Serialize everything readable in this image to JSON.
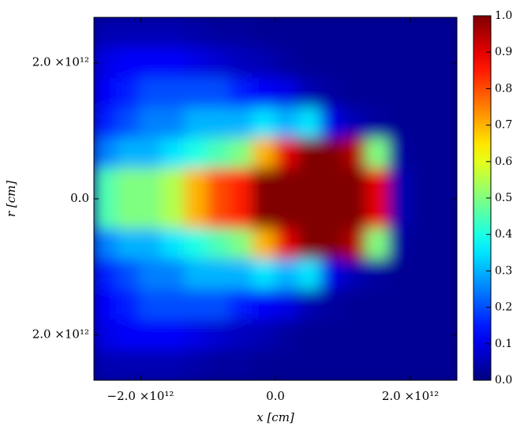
{
  "chart_data": {
    "type": "heatmap",
    "colormap": "jet",
    "x_label": "x [cm]",
    "y_label": "r [cm]",
    "xlim": [
      -2690000000000.0,
      2690000000000.0
    ],
    "ylim": [
      -2670000000000.0,
      2670000000000.0
    ],
    "xticks": [
      {
        "value": -2000000000000.0,
        "label": "−2.0 ×10¹²"
      },
      {
        "value": 0,
        "label": "0.0"
      },
      {
        "value": 2000000000000.0,
        "label": "2.0 ×10¹²"
      }
    ],
    "yticks": [
      {
        "value": 2000000000000.0,
        "label": "2.0 ×10¹²"
      },
      {
        "value": 0,
        "label": "0.0"
      },
      {
        "value": -2000000000000.0,
        "label": "2.0 ×10¹²"
      }
    ],
    "clim": [
      0,
      1
    ],
    "cticks": [
      {
        "value": 0,
        "label": "0.0"
      },
      0.1,
      0.2,
      0.3,
      0.4,
      0.5,
      0.6,
      0.7,
      0.8,
      0.9,
      {
        "value": 1,
        "label": "1.0"
      }
    ],
    "z": [
      [
        0.05,
        0.05,
        0.05,
        0.05,
        0.04,
        0.03,
        0.03,
        0.02,
        0.02,
        0.02,
        0.02,
        0.02,
        0.02,
        0.02,
        0.02,
        0.02
      ],
      [
        0.1,
        0.12,
        0.12,
        0.12,
        0.1,
        0.08,
        0.06,
        0.05,
        0.03,
        0.02,
        0.02,
        0.02,
        0.02,
        0.02,
        0.02,
        0.02
      ],
      [
        0.12,
        0.15,
        0.2,
        0.2,
        0.2,
        0.2,
        0.15,
        0.12,
        0.1,
        0.05,
        0.03,
        0.02,
        0.02,
        0.02,
        0.02,
        0.02
      ],
      [
        0.15,
        0.2,
        0.25,
        0.25,
        0.3,
        0.3,
        0.3,
        0.35,
        0.3,
        0.35,
        0.1,
        0.05,
        0.03,
        0.02,
        0.02,
        0.02
      ],
      [
        0.25,
        0.3,
        0.3,
        0.35,
        0.4,
        0.45,
        0.5,
        0.7,
        0.9,
        1.0,
        1.0,
        0.95,
        0.5,
        0.03,
        0.02,
        0.02
      ],
      [
        0.45,
        0.5,
        0.5,
        0.55,
        0.7,
        0.8,
        0.85,
        1.0,
        1.0,
        1.0,
        1.0,
        1.0,
        0.9,
        0.05,
        0.02,
        0.02
      ],
      [
        0.45,
        0.5,
        0.5,
        0.55,
        0.7,
        0.8,
        0.85,
        1.0,
        1.0,
        1.0,
        1.0,
        1.0,
        0.9,
        0.05,
        0.02,
        0.02
      ],
      [
        0.25,
        0.3,
        0.3,
        0.35,
        0.4,
        0.45,
        0.5,
        0.7,
        0.9,
        1.0,
        1.0,
        0.95,
        0.5,
        0.03,
        0.02,
        0.02
      ],
      [
        0.15,
        0.2,
        0.25,
        0.25,
        0.3,
        0.3,
        0.3,
        0.35,
        0.3,
        0.35,
        0.1,
        0.05,
        0.03,
        0.02,
        0.02,
        0.02
      ],
      [
        0.12,
        0.15,
        0.2,
        0.2,
        0.2,
        0.2,
        0.15,
        0.12,
        0.1,
        0.05,
        0.03,
        0.02,
        0.02,
        0.02,
        0.02,
        0.02
      ],
      [
        0.1,
        0.12,
        0.12,
        0.12,
        0.1,
        0.08,
        0.06,
        0.05,
        0.03,
        0.02,
        0.02,
        0.02,
        0.02,
        0.02,
        0.02,
        0.02
      ],
      [
        0.05,
        0.05,
        0.05,
        0.05,
        0.04,
        0.03,
        0.03,
        0.02,
        0.02,
        0.02,
        0.02,
        0.02,
        0.02,
        0.02,
        0.02,
        0.02
      ]
    ]
  }
}
